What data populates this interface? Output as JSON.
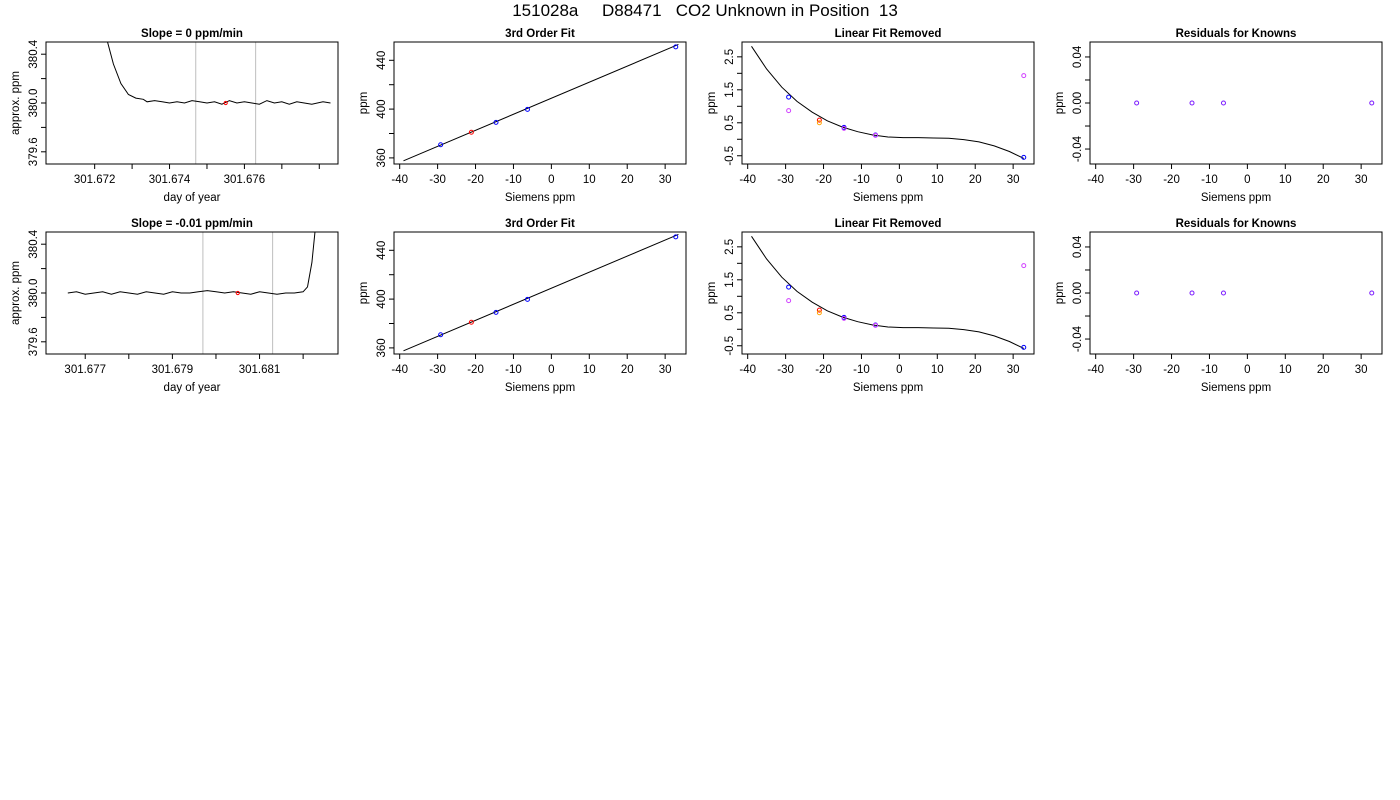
{
  "figure": {
    "title": "151028a     D88471   CO2 Unknown in Position  13"
  },
  "colors": {
    "axis": "#000000",
    "line": "#000000",
    "vline": "#bebebe",
    "known": "#0000ff",
    "unknown": "#ff0000",
    "orange": "#ffa500",
    "magenta": "#d040ff",
    "purple": "#7a1aff"
  },
  "chart_data": [
    {
      "type": "line",
      "title": "Slope =  0  ppm/min",
      "xlabel": "day of year",
      "ylabel": "approx. ppm",
      "xlim": [
        301.6707,
        301.6785
      ],
      "ylim": [
        379.5,
        380.5
      ],
      "xticks": [
        301.672,
        301.673,
        301.674,
        301.675,
        301.676,
        301.677,
        301.678
      ],
      "xtick_labels": [
        "301.672",
        "",
        "301.674",
        "",
        "301.676",
        "",
        ""
      ],
      "yticks": [
        379.6,
        379.8,
        380.0,
        380.2,
        380.4
      ],
      "ytick_labels": [
        "379.6",
        "",
        "380.0",
        "",
        "380.4"
      ],
      "vlines": [
        301.6747,
        301.6763
      ],
      "series": [
        {
          "x": [
            301.6723,
            301.6725,
            301.6727,
            301.6729,
            301.6731,
            301.6733,
            301.6734,
            301.6736,
            301.6738,
            301.674,
            301.6742,
            301.6744,
            301.6746,
            301.6748,
            301.675,
            301.6752,
            301.6754,
            301.6756,
            301.6758,
            301.676,
            301.6762,
            301.6764,
            301.6766,
            301.6768,
            301.677,
            301.6772,
            301.6774,
            301.6776,
            301.6778,
            301.6781,
            301.6783
          ],
          "y": [
            380.55,
            380.32,
            380.16,
            380.07,
            380.04,
            380.03,
            380.01,
            380.02,
            380.01,
            380.0,
            380.01,
            380.0,
            380.02,
            380.01,
            380.0,
            380.01,
            379.99,
            380.02,
            380.0,
            380.01,
            380.0,
            379.99,
            380.02,
            380.0,
            380.01,
            379.99,
            380.01,
            380.0,
            379.99,
            380.01,
            380.0
          ]
        }
      ],
      "highlight": {
        "x": 301.6755,
        "y": 380.0
      }
    },
    {
      "type": "scatter",
      "title": "3rd Order Fit",
      "xlabel": "Siemens ppm",
      "ylabel": "ppm",
      "xlim": [
        -41.5,
        35.5
      ],
      "ylim": [
        355,
        455
      ],
      "xticks": [
        -40,
        -30,
        -20,
        -10,
        0,
        10,
        20,
        30
      ],
      "yticks": [
        360,
        380,
        400,
        420,
        440
      ],
      "ytick_labels": [
        "360",
        "",
        "400",
        "",
        "440"
      ],
      "line": [
        [
          -39,
          357.6
        ],
        [
          33.5,
          453
        ]
      ],
      "points": [
        {
          "x": -29.2,
          "y": 370.8,
          "c": "known"
        },
        {
          "x": -21.1,
          "y": 381.0,
          "c": "unknown"
        },
        {
          "x": -14.6,
          "y": 389.1,
          "c": "known"
        },
        {
          "x": -6.3,
          "y": 399.8,
          "c": "known"
        },
        {
          "x": 32.8,
          "y": 451.0,
          "c": "known"
        }
      ]
    },
    {
      "type": "scatter",
      "title": "Linear Fit Removed",
      "xlabel": "Siemens ppm",
      "ylabel": "ppm",
      "xlim": [
        -41.5,
        35.5
      ],
      "ylim": [
        -0.75,
        2.95
      ],
      "xticks": [
        -40,
        -30,
        -20,
        -10,
        0,
        10,
        20,
        30
      ],
      "yticks": [
        -0.5,
        0,
        0.5,
        1.0,
        1.5,
        2.0,
        2.5
      ],
      "ytick_labels": [
        "-0.5",
        "",
        "0.5",
        "",
        "1.5",
        "",
        "2.5"
      ],
      "curve": {
        "x": [
          -39,
          -35,
          -31,
          -27,
          -23,
          -19,
          -15,
          -11,
          -7,
          -3,
          1,
          5,
          9,
          13,
          17,
          21,
          25,
          29,
          32.8
        ],
        "y": [
          2.82,
          2.13,
          1.58,
          1.15,
          0.82,
          0.56,
          0.37,
          0.23,
          0.13,
          0.07,
          0.05,
          0.05,
          0.04,
          0.03,
          -0.01,
          -0.08,
          -0.2,
          -0.37,
          -0.58
        ]
      },
      "points": [
        {
          "x": -29.2,
          "y": 1.28,
          "c": "known"
        },
        {
          "x": -29.2,
          "y": 0.87,
          "c": "magenta"
        },
        {
          "x": -21.1,
          "y": 0.58,
          "c": "unknown"
        },
        {
          "x": -21.1,
          "y": 0.5,
          "c": "orange"
        },
        {
          "x": -14.6,
          "y": 0.36,
          "c": "known"
        },
        {
          "x": -14.6,
          "y": 0.33,
          "c": "magenta"
        },
        {
          "x": -6.3,
          "y": 0.13,
          "c": "known"
        },
        {
          "x": -6.3,
          "y": 0.12,
          "c": "magenta"
        },
        {
          "x": 32.8,
          "y": -0.55,
          "c": "known"
        },
        {
          "x": 32.8,
          "y": 1.93,
          "c": "magenta"
        }
      ]
    },
    {
      "type": "scatter",
      "title": "Residuals for Knowns",
      "xlabel": "Siemens ppm",
      "ylabel": "ppm",
      "xlim": [
        -41.5,
        35.5
      ],
      "ylim": [
        -0.053,
        0.053
      ],
      "xticks": [
        -40,
        -30,
        -20,
        -10,
        0,
        10,
        20,
        30
      ],
      "yticks": [
        -0.04,
        -0.02,
        0.0,
        0.02,
        0.04
      ],
      "ytick_labels": [
        "-0.04",
        "",
        "0.00",
        "",
        "0.04"
      ],
      "points": [
        {
          "x": -29.2,
          "y": 0.0,
          "c": "purple"
        },
        {
          "x": -14.6,
          "y": 0.0,
          "c": "purple"
        },
        {
          "x": -6.3,
          "y": 0.0,
          "c": "purple"
        },
        {
          "x": 32.8,
          "y": 0.0,
          "c": "purple"
        }
      ]
    },
    {
      "type": "line",
      "title": "Slope =  -0.01  ppm/min",
      "xlabel": "day of year",
      "ylabel": "approx. ppm",
      "xlim": [
        301.6761,
        301.6828
      ],
      "ylim": [
        379.5,
        380.5
      ],
      "xticks": [
        301.677,
        301.678,
        301.679,
        301.68,
        301.681,
        301.682
      ],
      "xtick_labels": [
        "301.677",
        "",
        "301.679",
        "",
        "301.681",
        ""
      ],
      "yticks": [
        379.6,
        379.8,
        380.0,
        380.2,
        380.4
      ],
      "ytick_labels": [
        "379.6",
        "",
        "380.0",
        "",
        "380.4"
      ],
      "vlines": [
        301.6797,
        301.6813
      ],
      "series": [
        {
          "x": [
            301.6766,
            301.6768,
            301.677,
            301.6772,
            301.6774,
            301.6776,
            301.6778,
            301.678,
            301.6782,
            301.6784,
            301.6786,
            301.6788,
            301.679,
            301.6792,
            301.6794,
            301.6796,
            301.6798,
            301.68,
            301.6802,
            301.6804,
            301.6806,
            301.6808,
            301.681,
            301.6812,
            301.6814,
            301.6816,
            301.6818,
            301.682,
            301.6821,
            301.6822,
            301.6823
          ],
          "y": [
            380.0,
            380.01,
            379.99,
            380.0,
            380.01,
            379.99,
            380.01,
            380.0,
            379.99,
            380.01,
            380.0,
            379.99,
            380.01,
            380.0,
            380.0,
            380.01,
            380.02,
            380.01,
            380.0,
            380.01,
            380.0,
            379.99,
            380.01,
            380.0,
            379.99,
            380.0,
            380.0,
            380.01,
            380.05,
            380.25,
            380.6
          ]
        }
      ],
      "highlight": {
        "x": 301.6805,
        "y": 380.0
      }
    },
    {
      "type": "scatter",
      "title": "3rd Order Fit",
      "xlabel": "Siemens ppm",
      "ylabel": "ppm",
      "xlim": [
        -41.5,
        35.5
      ],
      "ylim": [
        355,
        455
      ],
      "xticks": [
        -40,
        -30,
        -20,
        -10,
        0,
        10,
        20,
        30
      ],
      "yticks": [
        360,
        380,
        400,
        420,
        440
      ],
      "ytick_labels": [
        "360",
        "",
        "400",
        "",
        "440"
      ],
      "line": [
        [
          -39,
          357.6
        ],
        [
          33.5,
          453
        ]
      ],
      "points": [
        {
          "x": -29.2,
          "y": 370.8,
          "c": "known"
        },
        {
          "x": -21.1,
          "y": 381.0,
          "c": "unknown"
        },
        {
          "x": -14.6,
          "y": 389.1,
          "c": "known"
        },
        {
          "x": -6.3,
          "y": 399.8,
          "c": "known"
        },
        {
          "x": 32.8,
          "y": 451.0,
          "c": "known"
        }
      ]
    },
    {
      "type": "scatter",
      "title": "Linear Fit Removed",
      "xlabel": "Siemens ppm",
      "ylabel": "ppm",
      "xlim": [
        -41.5,
        35.5
      ],
      "ylim": [
        -0.75,
        2.95
      ],
      "xticks": [
        -40,
        -30,
        -20,
        -10,
        0,
        10,
        20,
        30
      ],
      "yticks": [
        -0.5,
        0,
        0.5,
        1.0,
        1.5,
        2.0,
        2.5
      ],
      "ytick_labels": [
        "-0.5",
        "",
        "0.5",
        "",
        "1.5",
        "",
        "2.5"
      ],
      "curve": {
        "x": [
          -39,
          -35,
          -31,
          -27,
          -23,
          -19,
          -15,
          -11,
          -7,
          -3,
          1,
          5,
          9,
          13,
          17,
          21,
          25,
          29,
          32.8
        ],
        "y": [
          2.82,
          2.13,
          1.58,
          1.15,
          0.82,
          0.56,
          0.37,
          0.23,
          0.13,
          0.07,
          0.05,
          0.05,
          0.04,
          0.03,
          -0.01,
          -0.08,
          -0.2,
          -0.37,
          -0.58
        ]
      },
      "points": [
        {
          "x": -29.2,
          "y": 1.28,
          "c": "known"
        },
        {
          "x": -29.2,
          "y": 0.87,
          "c": "magenta"
        },
        {
          "x": -21.1,
          "y": 0.58,
          "c": "unknown"
        },
        {
          "x": -21.1,
          "y": 0.5,
          "c": "orange"
        },
        {
          "x": -14.6,
          "y": 0.36,
          "c": "known"
        },
        {
          "x": -14.6,
          "y": 0.33,
          "c": "magenta"
        },
        {
          "x": -6.3,
          "y": 0.13,
          "c": "known"
        },
        {
          "x": -6.3,
          "y": 0.12,
          "c": "magenta"
        },
        {
          "x": 32.8,
          "y": -0.55,
          "c": "known"
        },
        {
          "x": 32.8,
          "y": 1.93,
          "c": "magenta"
        }
      ]
    },
    {
      "type": "scatter",
      "title": "Residuals for Knowns",
      "xlabel": "Siemens ppm",
      "ylabel": "ppm",
      "xlim": [
        -41.5,
        35.5
      ],
      "ylim": [
        -0.053,
        0.053
      ],
      "xticks": [
        -40,
        -30,
        -20,
        -10,
        0,
        10,
        20,
        30
      ],
      "yticks": [
        -0.04,
        -0.02,
        0.0,
        0.02,
        0.04
      ],
      "ytick_labels": [
        "-0.04",
        "",
        "0.00",
        "",
        "0.04"
      ],
      "points": [
        {
          "x": -29.2,
          "y": 0.0,
          "c": "purple"
        },
        {
          "x": -14.6,
          "y": 0.0,
          "c": "purple"
        },
        {
          "x": -6.3,
          "y": 0.0,
          "c": "purple"
        },
        {
          "x": 32.8,
          "y": 0.0,
          "c": "purple"
        }
      ]
    }
  ]
}
